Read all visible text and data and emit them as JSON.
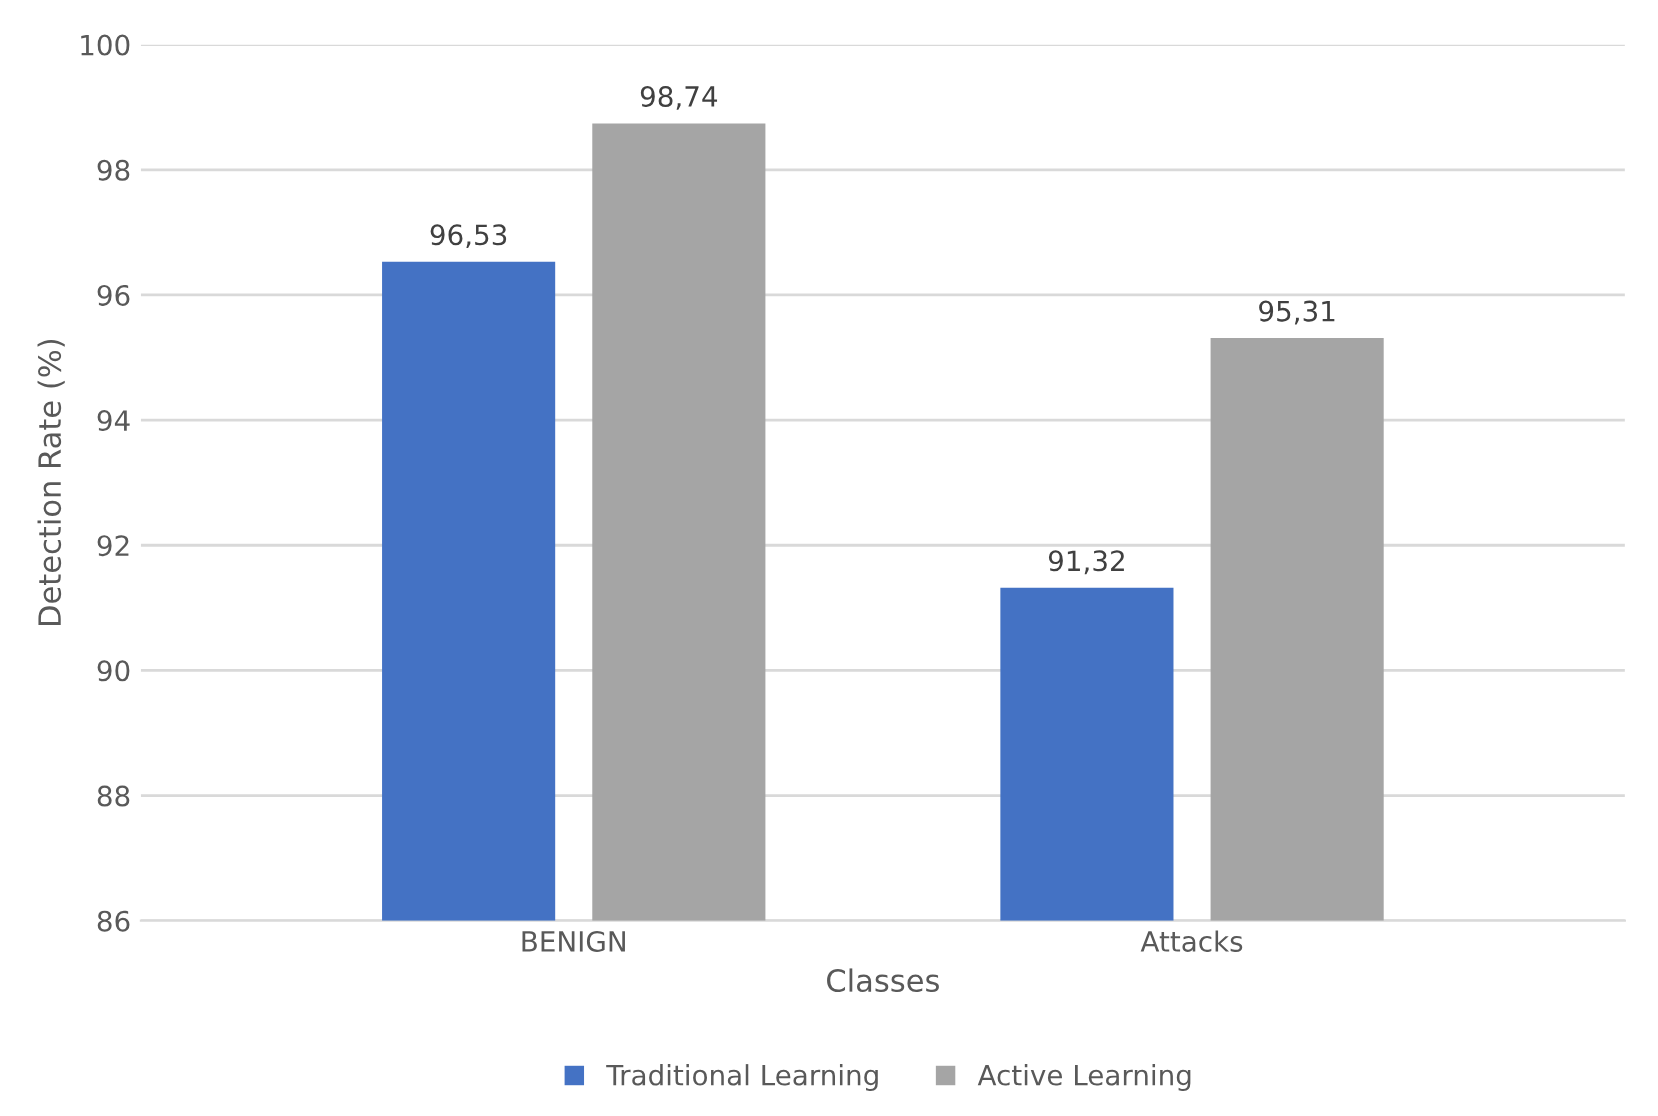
{
  "chart_data": {
    "type": "bar",
    "xlabel": "Classes",
    "ylabel": "Detection Rate (%)",
    "categories": [
      "BENIGN",
      "Attacks"
    ],
    "series": [
      {
        "name": "Traditional Learning",
        "color": "#4472c4",
        "values": [
          96.53,
          91.32
        ],
        "value_labels": [
          "96,53",
          "91,32"
        ]
      },
      {
        "name": "Active Learning",
        "color": "#a5a5a5",
        "values": [
          98.74,
          95.31
        ],
        "value_labels": [
          "98,74",
          "95,31"
        ]
      }
    ],
    "ylim": [
      86,
      100
    ],
    "yticks": [
      86,
      88,
      90,
      92,
      94,
      96,
      98,
      100
    ],
    "grid": "y",
    "legend": "bottom"
  }
}
